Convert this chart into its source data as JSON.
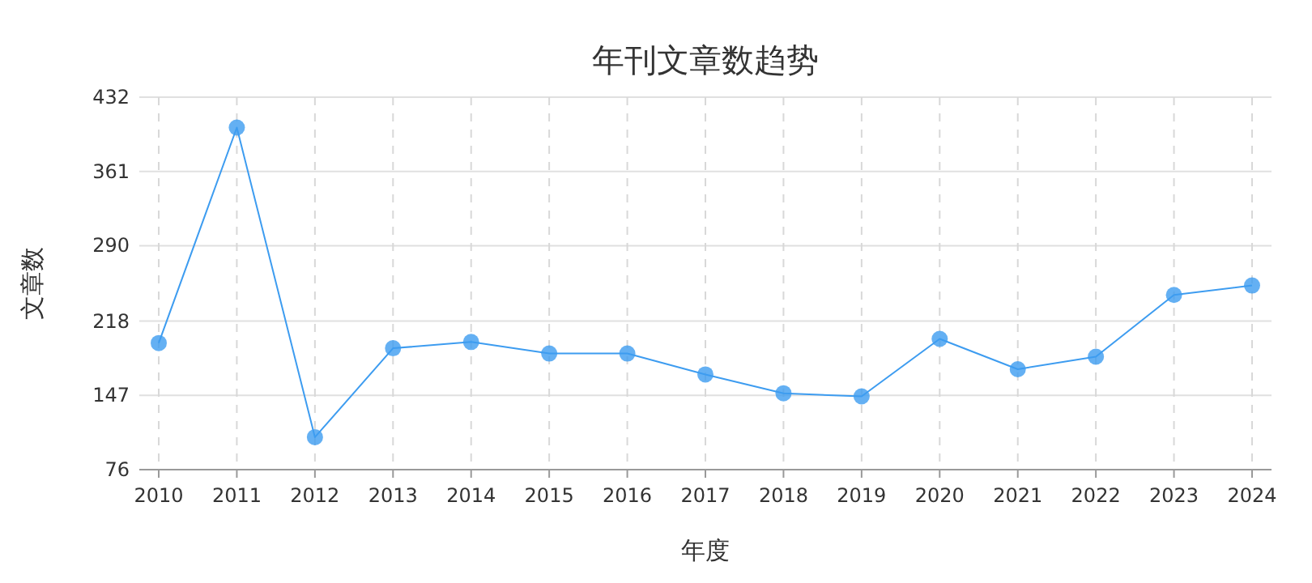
{
  "chart_data": {
    "type": "line",
    "title": "年刊文章数趋势",
    "xlabel": "年度",
    "ylabel": "文章数",
    "categories": [
      "2010",
      "2011",
      "2012",
      "2013",
      "2014",
      "2015",
      "2016",
      "2017",
      "2018",
      "2019",
      "2020",
      "2021",
      "2022",
      "2023",
      "2024"
    ],
    "series": [
      {
        "color": "#3d9cf0",
        "values": [
          197,
          403,
          107,
          192,
          198,
          187,
          187,
          167,
          149,
          146,
          201,
          172,
          184,
          243,
          252
        ]
      }
    ],
    "ylim": [
      76,
      432
    ],
    "yticks": [
      76,
      147,
      218,
      290,
      361,
      432
    ],
    "grid": true,
    "marker": "circle",
    "line_style": "solid"
  }
}
